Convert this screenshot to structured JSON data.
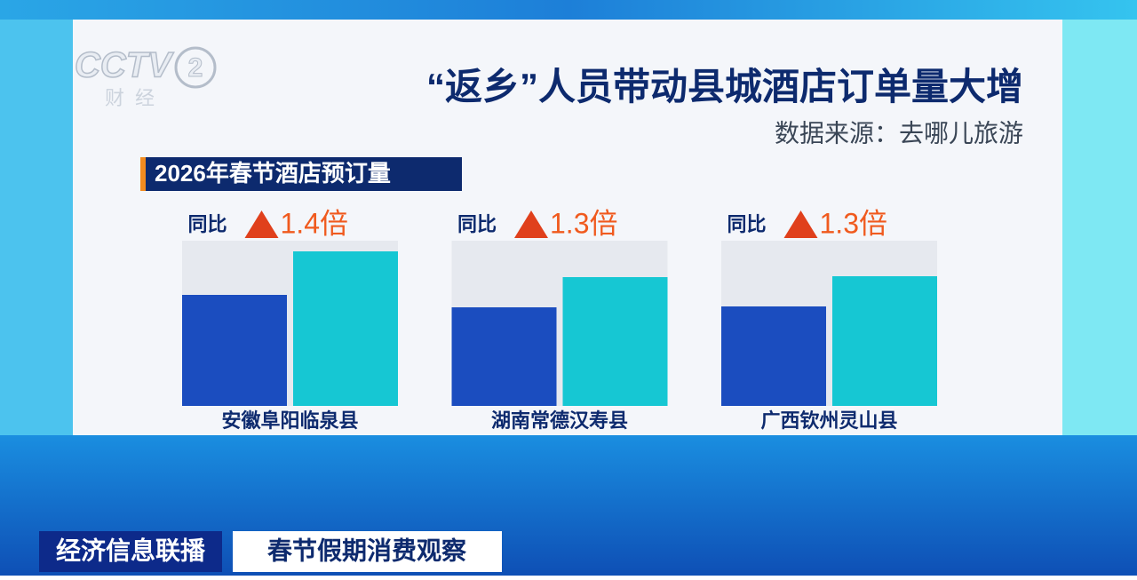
{
  "logo": {
    "brand": "CCTV",
    "number": "2",
    "name": "财经"
  },
  "chart_data": {
    "type": "bar",
    "title": "“返乡”人员带动县城酒店订单量大增",
    "source": "数据来源：去哪儿旅游",
    "subtitle": "2026年春节酒店预订量",
    "categories": [
      "安徽阜阳临泉县",
      "湖南常德汉寿县",
      "广西钦州灵山县"
    ],
    "series": [
      {
        "color": "#1b4dbf",
        "values": [
          125,
          111,
          112
        ]
      },
      {
        "color": "#16c7d3",
        "values": [
          174,
          145,
          146
        ]
      }
    ],
    "ylim": [
      0,
      186
    ],
    "annotations": [
      {
        "prefix": "同比",
        "text": "1.4倍"
      },
      {
        "prefix": "同比",
        "text": "1.3倍"
      },
      {
        "prefix": "同比",
        "text": "1.3倍"
      }
    ]
  },
  "ticker": {
    "program": "经济信息联播",
    "topic": "春节假期消费观察"
  }
}
